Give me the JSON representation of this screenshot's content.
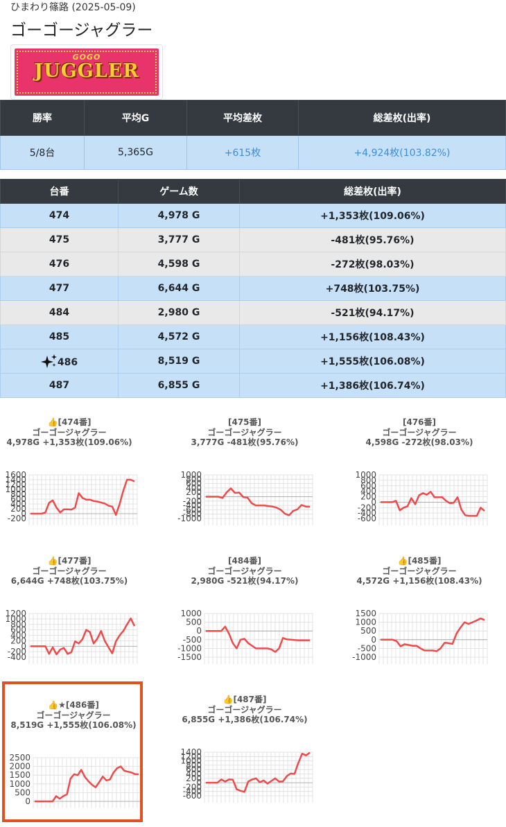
{
  "header": {
    "breadcrumb": "ひまわり篠路 (2025-05-09)",
    "title": "ゴーゴージャグラー",
    "logo": {
      "top_text": "GOGO",
      "main_text": "JUGGLER",
      "icon": "gogo-juggler-logo"
    }
  },
  "summary": {
    "headers": [
      "勝率",
      "平均G",
      "平均差枚",
      "総差枚(出率)"
    ],
    "values": [
      "5/8台",
      "5,365G",
      "+615枚",
      "+4,924枚(103.82%)"
    ]
  },
  "machines": {
    "headers": [
      "台番",
      "ゲーム数",
      "総差枚(出率)"
    ],
    "rows": [
      {
        "num": "474",
        "games": "4,978 G",
        "diff": "+1,353枚(109.06%)",
        "color": "#c5e0f7"
      },
      {
        "num": "475",
        "games": "3,777 G",
        "diff": "-481枚(95.76%)",
        "color": "#e9e9e9"
      },
      {
        "num": "476",
        "games": "4,598 G",
        "diff": "-272枚(98.03%)",
        "color": "#e9e9e9"
      },
      {
        "num": "477",
        "games": "6,644 G",
        "diff": "+748枚(103.75%)",
        "color": "#c5e0f7"
      },
      {
        "num": "484",
        "games": "2,980 G",
        "diff": "-521枚(94.17%)",
        "color": "#e9e9e9"
      },
      {
        "num": "485",
        "games": "4,572 G",
        "diff": "+1,156枚(108.43%)",
        "color": "#c5e0f7"
      },
      {
        "num": "486",
        "games": "8,519 G",
        "diff": "+1,555枚(106.08%)",
        "color": "#c5e0f7",
        "icon": "sparkles-icon"
      },
      {
        "num": "487",
        "games": "6,855 G",
        "diff": "+1,386枚(106.74%)",
        "color": "#c5e0f7"
      }
    ]
  },
  "chart_data": [
    {
      "type": "line",
      "title": "👍[474番]",
      "subtitle": "ゴーゴージャグラー",
      "caption": "4,978G +1,353枚(109.06%)",
      "yticks": [
        "1600",
        "1400",
        "1200",
        "1000",
        "800",
        "600",
        "400",
        "200",
        "0",
        "-200"
      ],
      "ylim": [
        -200,
        1600
      ],
      "values": [
        0,
        0,
        0,
        0,
        50,
        450,
        550,
        250,
        50,
        180,
        180,
        170,
        250,
        850,
        650,
        580,
        580,
        520,
        500,
        460,
        420,
        330,
        290,
        -50,
        400,
        950,
        1400,
        1400,
        1330
      ]
    },
    {
      "type": "line",
      "title": "[475番]",
      "subtitle": "ゴーゴージャグラー",
      "caption": "3,777G -481枚(95.76%)",
      "yticks": [
        "1000",
        "800",
        "600",
        "400",
        "200",
        "0",
        "-200",
        "-400",
        "-600",
        "-800",
        "-1000"
      ],
      "ylim": [
        -1000,
        1000
      ],
      "values": [
        0,
        0,
        0,
        0,
        -60,
        200,
        380,
        170,
        190,
        -20,
        -40,
        -300,
        -400,
        -400,
        -400,
        -430,
        -450,
        -500,
        -600,
        -780,
        -850,
        -650,
        -580,
        -380,
        -450,
        -460
      ]
    },
    {
      "type": "line",
      "title": "[476番]",
      "subtitle": "ゴーゴージャグラー",
      "caption": "4,598G -272枚(98.03%)",
      "yticks": [
        "1000",
        "800",
        "600",
        "400",
        "200",
        "0",
        "-200",
        "-400",
        "-600"
      ],
      "ylim": [
        -600,
        1000
      ],
      "values": [
        0,
        0,
        0,
        0,
        50,
        -300,
        -200,
        -150,
        150,
        -80,
        250,
        330,
        270,
        380,
        180,
        180,
        180,
        50,
        -40,
        -20,
        180,
        -280,
        -480,
        -500,
        -500,
        -500,
        -200,
        -320
      ]
    },
    {
      "type": "line",
      "title": "👍[477番]",
      "subtitle": "ゴーゴージャグラー",
      "caption": "6,644G +748枚(103.75%)",
      "yticks": [
        "1200",
        "1000",
        "800",
        "600",
        "400",
        "200",
        "0",
        "-200",
        "-400"
      ],
      "ylim": [
        -400,
        1200
      ],
      "values": [
        0,
        0,
        0,
        0,
        0,
        -280,
        -40,
        -300,
        -120,
        -60,
        -280,
        -220,
        180,
        100,
        260,
        600,
        520,
        100,
        280,
        560,
        200,
        -40,
        -260,
        180,
        400,
        560,
        800,
        1020,
        740
      ]
    },
    {
      "type": "line",
      "title": "[484番]",
      "subtitle": "ゴーゴージャグラー",
      "caption": "2,980G -521枚(94.17%)",
      "yticks": [
        "1000",
        "500",
        "0",
        "-500",
        "-1000",
        "-1500"
      ],
      "ylim": [
        -1500,
        1000
      ],
      "values": [
        0,
        0,
        0,
        0,
        0,
        250,
        -150,
        -700,
        -1000,
        -500,
        -450,
        -700,
        -850,
        -1000,
        -1000,
        -1000,
        -1000,
        -1050,
        -1200,
        -1000,
        -400,
        -480,
        -500,
        -520,
        -530,
        -530,
        -530,
        -530
      ]
    },
    {
      "type": "line",
      "title": "👍[485番]",
      "subtitle": "ゴーゴージャグラー",
      "caption": "4,572G +1,156枚(108.43%)",
      "yticks": [
        "1500",
        "1000",
        "500",
        "0",
        "-500",
        "-1000"
      ],
      "ylim": [
        -1000,
        1500
      ],
      "values": [
        0,
        0,
        0,
        0,
        -80,
        -380,
        -260,
        -300,
        -350,
        -350,
        -500,
        -620,
        -620,
        -620,
        -660,
        -500,
        -180,
        -200,
        -240,
        350,
        700,
        1000,
        900,
        1000,
        1100,
        1220,
        1130
      ]
    },
    {
      "type": "line",
      "title": "👍★[486番]",
      "subtitle": "ゴーゴージャグラー",
      "caption": "8,519G +1,555枚(106.08%)",
      "yticks": [
        "2500",
        "2000",
        "1500",
        "1000",
        "500",
        "0"
      ],
      "ylim": [
        0,
        2500
      ],
      "values": [
        0,
        0,
        0,
        0,
        0,
        0,
        300,
        150,
        300,
        400,
        1300,
        1550,
        1500,
        1800,
        1400,
        1150,
        950,
        800,
        1100,
        1420,
        1200,
        1250,
        1650,
        1900,
        2000,
        1750,
        1700,
        1650,
        1550,
        1550
      ]
    },
    {
      "type": "line",
      "title": "👍[487番]",
      "subtitle": "ゴーゴージャグラー",
      "caption": "6,855G +1,386枚(106.74%)",
      "yticks": [
        "1400",
        "1200",
        "1000",
        "800",
        "600",
        "400",
        "200",
        "0",
        "-200",
        "-400",
        "-600"
      ],
      "ylim": [
        -600,
        1400
      ],
      "values": [
        0,
        0,
        0,
        0,
        150,
        50,
        150,
        140,
        -300,
        -370,
        -420,
        50,
        150,
        200,
        20,
        100,
        -40,
        80,
        200,
        50,
        60,
        300,
        420,
        400,
        900,
        1330,
        1250,
        1380
      ]
    }
  ]
}
